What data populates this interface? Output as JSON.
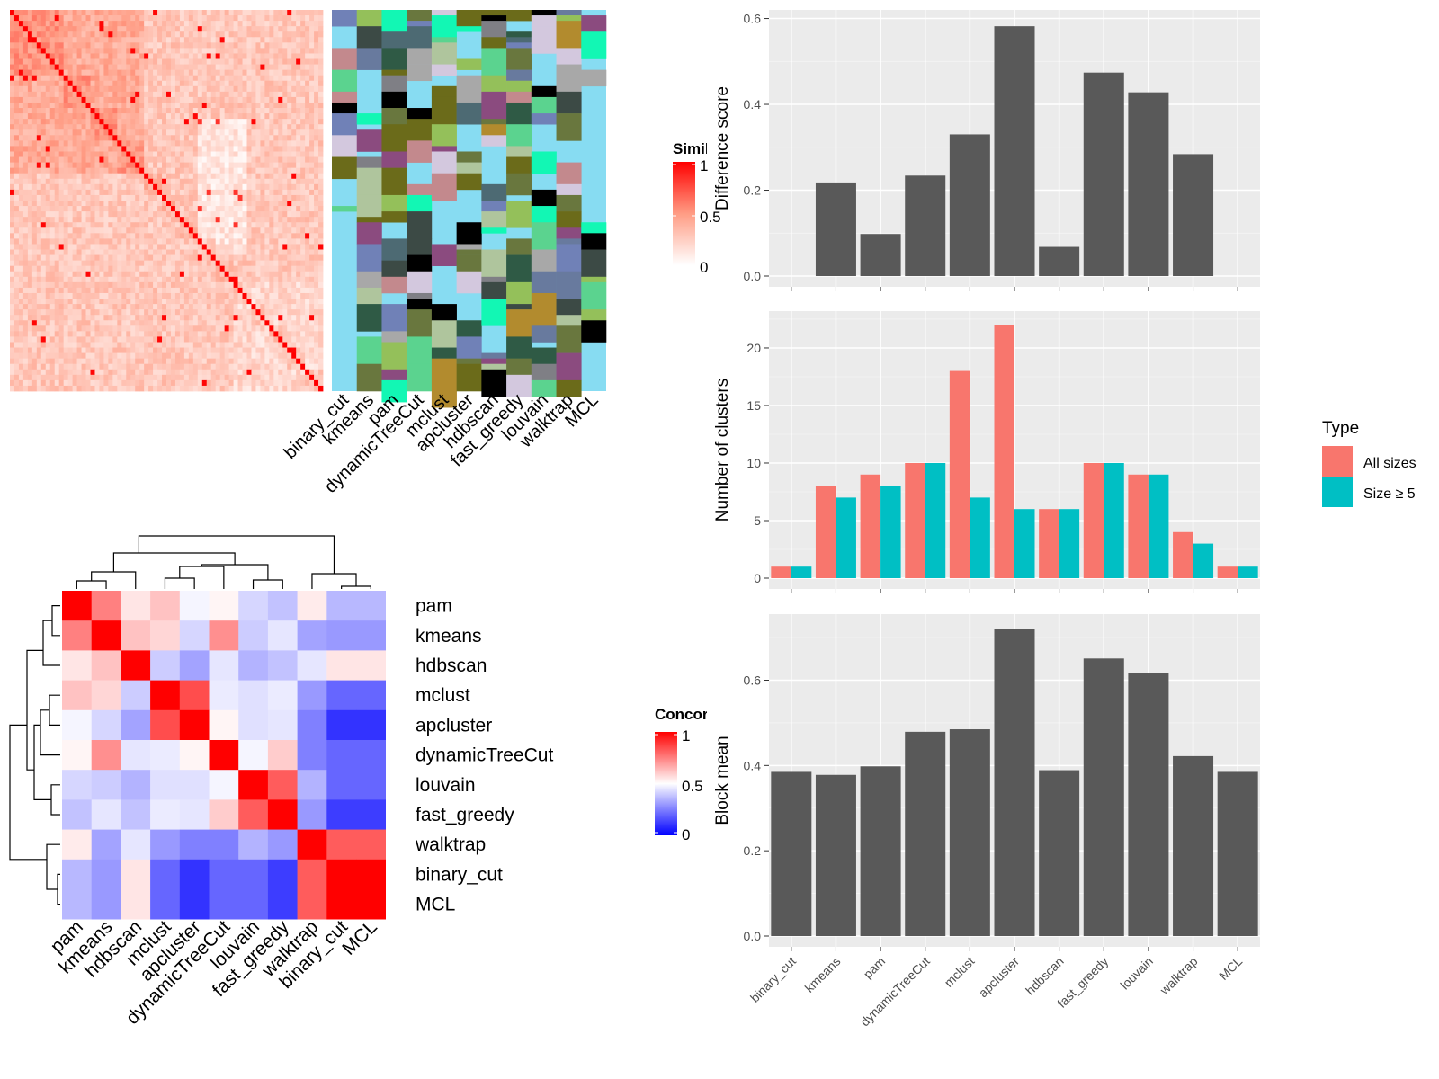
{
  "methods": [
    "binary_cut",
    "kmeans",
    "pam",
    "dynamicTreeCut",
    "mclust",
    "apcluster",
    "hdbscan",
    "fast_greedy",
    "louvain",
    "walktrap",
    "MCL"
  ],
  "similarity_legend": {
    "title": "Similarity",
    "ticks": [
      "1",
      "0.5",
      "0"
    ]
  },
  "concordance_legend": {
    "title": "Concordance",
    "ticks": [
      "1",
      "0.5",
      "0"
    ]
  },
  "concordance_order": [
    "pam",
    "kmeans",
    "hdbscan",
    "mclust",
    "apcluster",
    "dynamicTreeCut",
    "louvain",
    "fast_greedy",
    "walktrap",
    "binary_cut",
    "MCL"
  ],
  "type_legend": {
    "title": "Type",
    "items": [
      "All sizes",
      "Size ≥ 5"
    ]
  },
  "colors": {
    "panel_bg": "#ebebeb",
    "grid": "#ffffff",
    "bar": "#595959",
    "all_sizes": "#f8766d",
    "size_ge_5": "#00bfc4",
    "sim_high": "#ff0000",
    "sim_low": "#ffffff",
    "conc_low": "#0000ff",
    "conc_mid": "#ffffff",
    "conc_high": "#ff0000",
    "cluster_bg": "#87dcf2"
  },
  "chart_data": [
    {
      "type": "bar",
      "ylabel": "Difference score",
      "ylim": [
        0,
        0.62
      ],
      "yticks": [
        "0.0",
        "0.2",
        "0.4",
        "0.6"
      ],
      "categories": [
        "binary_cut",
        "kmeans",
        "pam",
        "dynamicTreeCut",
        "mclust",
        "apcluster",
        "hdbscan",
        "fast_greedy",
        "louvain",
        "walktrap",
        "MCL"
      ],
      "values": [
        0,
        0.218,
        0.098,
        0.234,
        0.33,
        0.582,
        0.068,
        0.474,
        0.428,
        0.284,
        0
      ]
    },
    {
      "type": "bar",
      "ylabel": "Number of clusters",
      "ylim": [
        0,
        23.2
      ],
      "yticks": [
        "0",
        "5",
        "10",
        "15",
        "20"
      ],
      "categories": [
        "binary_cut",
        "kmeans",
        "pam",
        "dynamicTreeCut",
        "mclust",
        "apcluster",
        "hdbscan",
        "fast_greedy",
        "louvain",
        "walktrap",
        "MCL"
      ],
      "series": [
        {
          "name": "All sizes",
          "values": [
            1,
            8,
            9,
            10,
            18,
            22,
            6,
            10,
            9,
            4,
            1
          ]
        },
        {
          "name": "Size ≥ 5",
          "values": [
            1,
            7,
            8,
            10,
            7,
            6,
            6,
            10,
            9,
            3,
            1
          ]
        }
      ]
    },
    {
      "type": "bar",
      "ylabel": "Block mean",
      "ylim": [
        0,
        0.755
      ],
      "yticks": [
        "0.0",
        "0.2",
        "0.4",
        "0.6"
      ],
      "categories": [
        "binary_cut",
        "kmeans",
        "pam",
        "dynamicTreeCut",
        "mclust",
        "apcluster",
        "hdbscan",
        "fast_greedy",
        "louvain",
        "walktrap",
        "MCL"
      ],
      "values": [
        0.385,
        0.378,
        0.398,
        0.479,
        0.485,
        0.721,
        0.389,
        0.651,
        0.616,
        0.422,
        0.385
      ]
    },
    {
      "type": "heatmap",
      "rows": [
        "pam",
        "kmeans",
        "hdbscan",
        "mclust",
        "apcluster",
        "dynamicTreeCut",
        "louvain",
        "fast_greedy",
        "walktrap",
        "binary_cut",
        "MCL"
      ],
      "cols": [
        "pam",
        "kmeans",
        "hdbscan",
        "mclust",
        "apcluster",
        "dynamicTreeCut",
        "louvain",
        "fast_greedy",
        "walktrap",
        "binary_cut",
        "MCL"
      ],
      "values": [
        [
          1.0,
          0.75,
          0.55,
          0.62,
          0.48,
          0.52,
          0.42,
          0.38,
          0.54,
          0.36,
          0.36
        ],
        [
          0.75,
          1.0,
          0.62,
          0.58,
          0.42,
          0.72,
          0.4,
          0.45,
          0.32,
          0.3,
          0.3
        ],
        [
          0.55,
          0.62,
          1.0,
          0.4,
          0.32,
          0.45,
          0.35,
          0.38,
          0.45,
          0.55,
          0.55
        ],
        [
          0.62,
          0.58,
          0.4,
          1.0,
          0.85,
          0.46,
          0.44,
          0.46,
          0.3,
          0.2,
          0.2
        ],
        [
          0.48,
          0.42,
          0.32,
          0.85,
          1.0,
          0.52,
          0.44,
          0.45,
          0.25,
          0.1,
          0.1
        ],
        [
          0.52,
          0.72,
          0.45,
          0.46,
          0.52,
          1.0,
          0.48,
          0.6,
          0.25,
          0.2,
          0.2
        ],
        [
          0.42,
          0.4,
          0.35,
          0.44,
          0.44,
          0.48,
          1.0,
          0.82,
          0.35,
          0.2,
          0.2
        ],
        [
          0.38,
          0.45,
          0.38,
          0.46,
          0.45,
          0.6,
          0.82,
          1.0,
          0.3,
          0.12,
          0.12
        ],
        [
          0.54,
          0.32,
          0.45,
          0.3,
          0.25,
          0.25,
          0.35,
          0.3,
          1.0,
          0.82,
          0.82
        ],
        [
          0.36,
          0.3,
          0.55,
          0.2,
          0.1,
          0.2,
          0.2,
          0.12,
          0.82,
          1.0,
          1.0
        ],
        [
          0.36,
          0.3,
          0.55,
          0.2,
          0.1,
          0.2,
          0.2,
          0.12,
          0.82,
          1.0,
          1.0
        ]
      ]
    }
  ]
}
